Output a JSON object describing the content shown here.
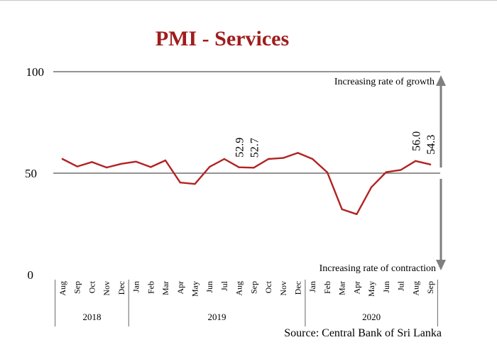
{
  "chart_data": {
    "type": "line",
    "title": "PMI - Services",
    "source": "Source: Central Bank of Sri Lanka",
    "ylim": [
      0,
      100
    ],
    "y_ticks": [
      0,
      50,
      100
    ],
    "annotations": {
      "growth": "Increasing rate of growth",
      "contraction": "Increasing rate of contraction"
    },
    "years": [
      {
        "label": "2018",
        "start": 0,
        "end": 4
      },
      {
        "label": "2019",
        "start": 5,
        "end": 16
      },
      {
        "label": "2020",
        "start": 17,
        "end": 25
      }
    ],
    "categories": [
      "Aug",
      "Sep",
      "Oct",
      "Nov",
      "Dec",
      "Jan",
      "Feb",
      "Mar",
      "Apr",
      "May",
      "Jun",
      "Jul",
      "Aug",
      "Sep",
      "Oct",
      "Nov",
      "Dec",
      "Jan",
      "Feb",
      "Mar",
      "Apr",
      "May",
      "Jun",
      "Jul",
      "Aug",
      "Sep"
    ],
    "series": [
      {
        "name": "PMI - Services",
        "color": "#b22222",
        "values": [
          57.0,
          53.3,
          55.5,
          52.8,
          54.6,
          55.7,
          53.0,
          56.3,
          45.4,
          44.7,
          53.1,
          57.0,
          52.9,
          52.7,
          57.0,
          57.5,
          60.0,
          57.0,
          50.4,
          32.2,
          29.8,
          43.1,
          50.5,
          51.6,
          56.0,
          54.3
        ]
      }
    ],
    "data_labels": [
      {
        "index": 12,
        "text": "52.9"
      },
      {
        "index": 13,
        "text": "52.7"
      },
      {
        "index": 24,
        "text": "56.0"
      },
      {
        "index": 25,
        "text": "54.3"
      }
    ]
  }
}
